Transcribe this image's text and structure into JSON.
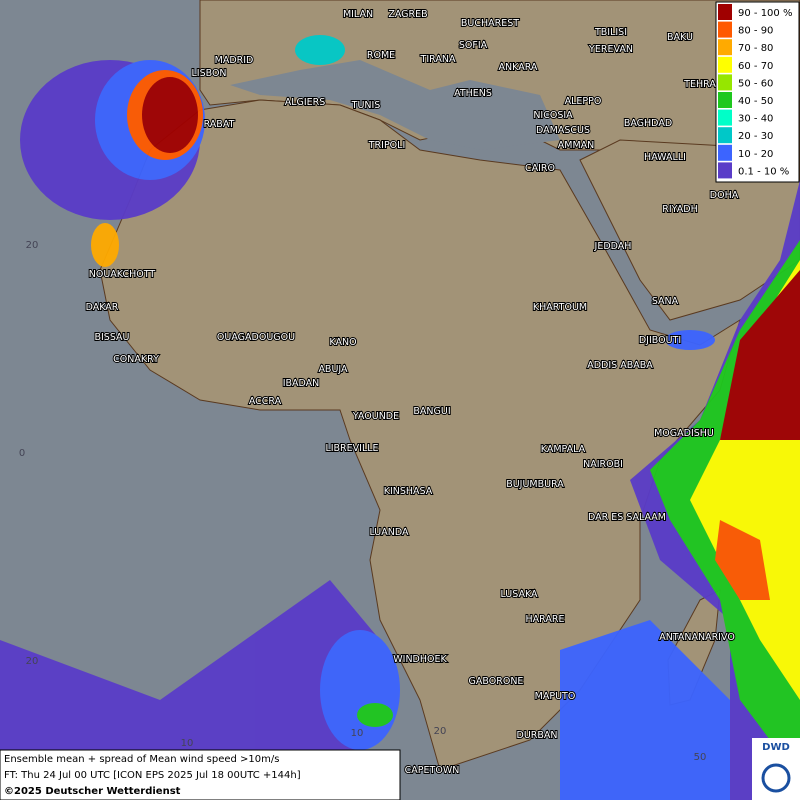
{
  "legend": {
    "items": [
      {
        "label": "90 - 100 %",
        "color": "#a00000"
      },
      {
        "label": "80 - 90",
        "color": "#ff5a00"
      },
      {
        "label": "70 - 80",
        "color": "#ffaa00"
      },
      {
        "label": "60 - 70",
        "color": "#ffff00"
      },
      {
        "label": "50 - 60",
        "color": "#96e600"
      },
      {
        "label": "40 - 50",
        "color": "#1ec81e"
      },
      {
        "label": "30 - 40",
        "color": "#00ffc8"
      },
      {
        "label": "20 - 30",
        "color": "#00c8c8"
      },
      {
        "label": "10 - 20",
        "color": "#3c64ff"
      },
      {
        "label": "0.1 - 10 %",
        "color": "#5a3cc8"
      }
    ]
  },
  "cities": [
    "MILAN",
    "ZAGREB",
    "BUCHAREST",
    "TBILISI",
    "BAKU",
    "YEREVAN",
    "SOFIA",
    "MADRID",
    "LISBON",
    "ROME",
    "TIRANA",
    "ANKARA",
    "TEHRA",
    "ALGIERS",
    "TUNIS",
    "ATHENS",
    "ALEPPO",
    "NICOSIA",
    "BAGHDAD",
    "RABAT",
    "DAMASCUS",
    "AMMAN",
    "HAWALLI",
    "TRIPOLI",
    "CAIRO",
    "DOHA",
    "RIYADH",
    "JEDDAH",
    "NOUAKCHOTT",
    "DAKAR",
    "KHARTOUM",
    "SANA",
    "BISSAU",
    "OUAGADOUGOU",
    "KANO",
    "DJIBOUTI",
    "CONAKRY",
    "ABUJA",
    "ADDIS ABABA",
    "IBADAN",
    "ACCRA",
    "YAOUNDE",
    "BANGUI",
    "MOGADISHU",
    "LIBREVILLE",
    "KAMPALA",
    "NAIROBI",
    "KINSHASA",
    "BUJUMBURA",
    "DAR ES SALAAM",
    "LUANDA",
    "LUSAKA",
    "HARARE",
    "ANTANANARIVO",
    "WINDHOEK",
    "GABORONE",
    "MAPUTO",
    "DURBAN",
    "CAPETOWN"
  ],
  "grid_labels": [
    "20",
    "0",
    "20",
    "10",
    "10",
    "20",
    "50"
  ],
  "footer": {
    "line1": "Ensemble mean + spread of Mean wind speed >10m/s",
    "line2": "FT: Thu 24 Jul 00 UTC [ICON EPS 2025 Jul 18 00UTC +144h]",
    "copyright": "©2025 Deutscher Wetterdienst"
  },
  "logo": "DWD"
}
